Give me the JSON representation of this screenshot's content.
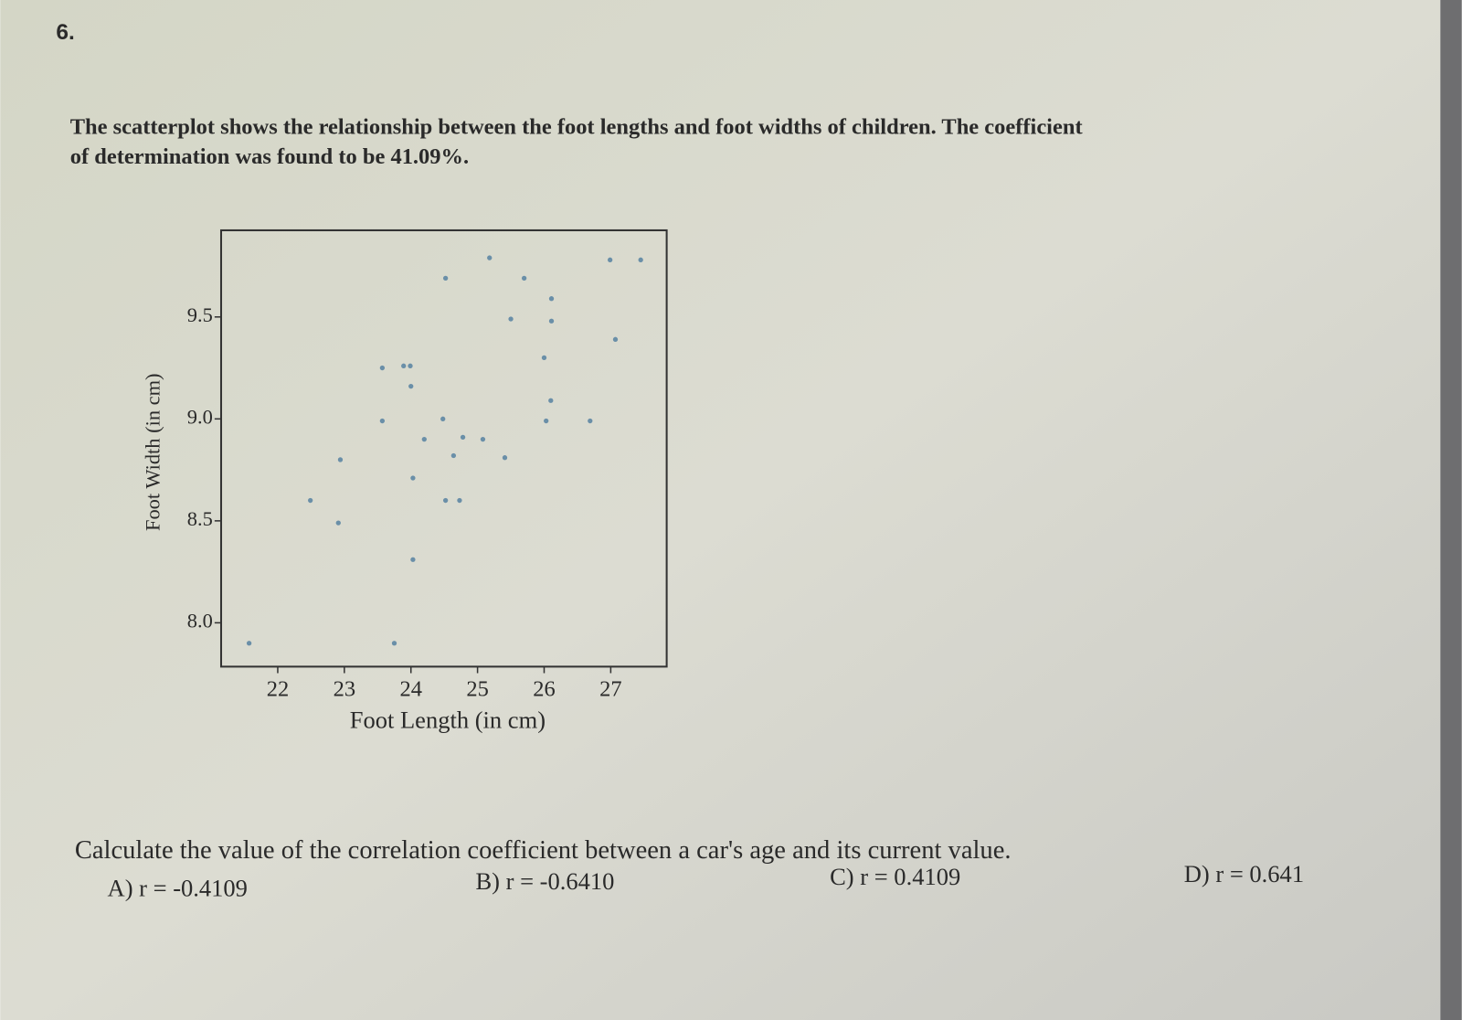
{
  "question_number": "6.",
  "prompt_lines": [
    "The scatterplot shows the relationship between the foot lengths and foot widths of children. The coefficient",
    "of determination was found to be 41.09%."
  ],
  "chart_data": {
    "type": "scatter",
    "x_label": "Foot Length (in cm)",
    "y_label": "Foot Width (in cm)",
    "color": "#6a8fa8",
    "x": [
      21.57,
      22.49,
      22.91,
      22.94,
      23.57,
      23.89,
      23.99,
      24.0,
      24.52,
      25.18,
      25.7,
      26.11,
      26.11,
      25.5,
      26.99,
      27.45,
      27.07,
      26.0,
      26.1,
      23.57,
      24.48,
      26.03,
      26.69,
      24.2,
      24.78,
      25.08,
      24.64,
      25.41,
      24.03,
      24.52,
      24.73,
      24.03,
      23.75
    ],
    "y": [
      7.9,
      8.6,
      8.49,
      8.8,
      9.25,
      9.26,
      9.26,
      9.16,
      9.69,
      9.79,
      9.69,
      9.59,
      9.48,
      9.49,
      9.78,
      9.78,
      9.39,
      9.3,
      9.09,
      8.99,
      9.0,
      8.99,
      8.99,
      8.9,
      8.91,
      8.9,
      8.82,
      8.81,
      8.71,
      8.6,
      8.6,
      8.31,
      7.9
    ],
    "xlim": [
      21.15,
      27.84
    ],
    "ylim": [
      7.785,
      9.925
    ],
    "xticks": [
      22,
      23,
      24,
      25,
      26,
      27
    ],
    "yticks": [
      {
        "value": 8,
        "label": "8.0"
      },
      8.5,
      {
        "value": 9,
        "label": "9.0"
      },
      9.5
    ]
  },
  "question": "Calculate the value of the correlation coefficient between a car's age and its current value.",
  "choices": [
    "A) r = -0.4109",
    "B) r = -0.6410",
    "C) r = 0.4109",
    "D) r = 0.641"
  ]
}
